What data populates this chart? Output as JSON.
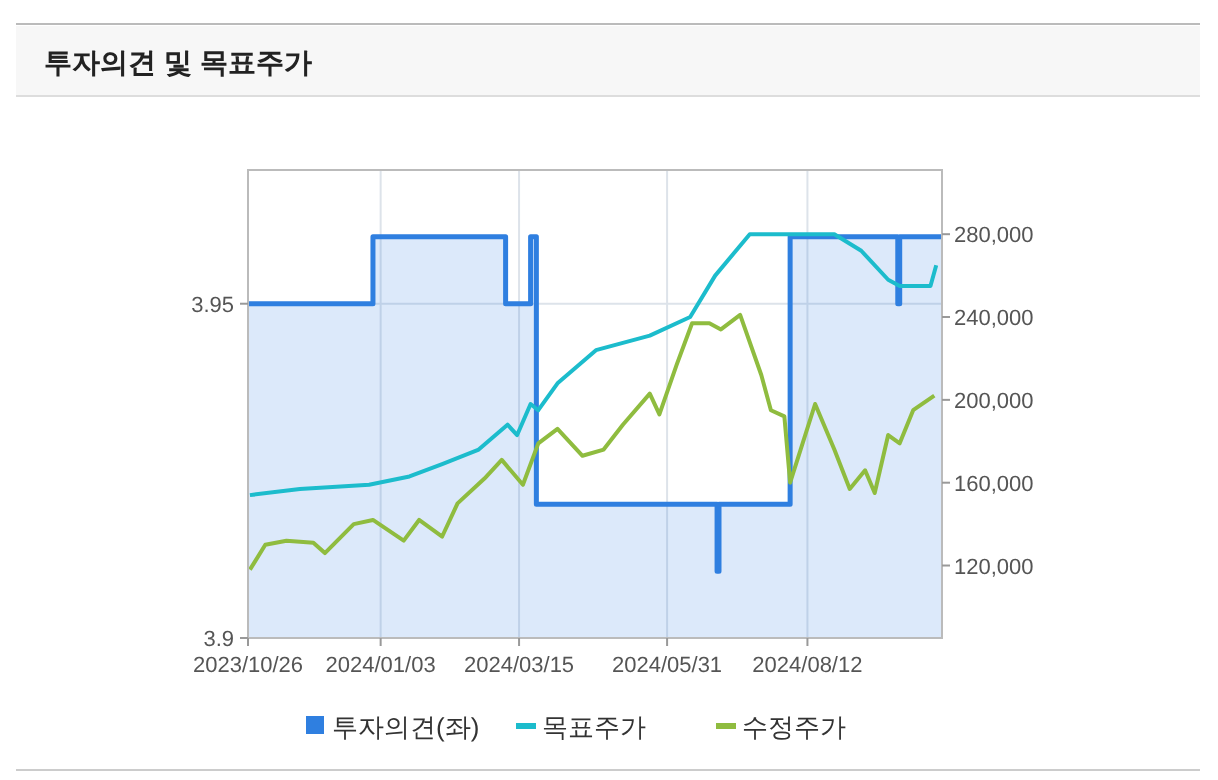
{
  "chart_data": {
    "type": "line",
    "title": "투자의견 및 목표주가",
    "xlim": [
      "2023-10-26",
      "2024-10-21"
    ],
    "xticks": [
      {
        "value": "2023-10-26",
        "label": "2023/10/26"
      },
      {
        "value": "2024-01-03",
        "label": "2024/01/03"
      },
      {
        "value": "2024-03-15",
        "label": "2024/03/15"
      },
      {
        "value": "2024-05-31",
        "label": "2024/05/31"
      },
      {
        "value": "2024-08-12",
        "label": "2024/08/12"
      }
    ],
    "ylim": [
      3.9,
      3.97
    ],
    "yticks": [
      3.9,
      3.95
    ],
    "y2lim": [
      85000,
      311000
    ],
    "y2ticks": [
      {
        "value": 120000,
        "label": "120,000"
      },
      {
        "value": 160000,
        "label": "160,000"
      },
      {
        "value": 200000,
        "label": "200,000"
      },
      {
        "value": 240000,
        "label": "240,000"
      },
      {
        "value": 280000,
        "label": "280,000"
      }
    ],
    "grid": true,
    "legend": "bottom",
    "series": [
      {
        "name": "투자의견(좌)",
        "type": "area",
        "color": "#2f7fe0",
        "x": [
          "2023-10-26",
          "2023-12-30",
          "2023-12-30",
          "2024-03-08",
          "2024-03-08",
          "2024-03-21",
          "2024-03-21",
          "2024-03-24",
          "2024-03-24",
          "2024-06-26",
          "2024-06-26",
          "2024-06-27",
          "2024-06-27",
          "2024-08-03",
          "2024-08-03",
          "2024-09-28",
          "2024-09-28",
          "2024-09-29",
          "2024-09-29",
          "2024-10-21"
        ],
        "values": [
          3.95,
          3.95,
          3.96,
          3.96,
          3.95,
          3.95,
          3.96,
          3.96,
          3.92,
          3.92,
          3.91,
          3.91,
          3.92,
          3.92,
          3.96,
          3.96,
          3.95,
          3.95,
          3.96,
          3.96
        ]
      },
      {
        "name": "목표주가",
        "type": "line",
        "axis": "y2",
        "color": "#1cbccc",
        "x": [
          "2023-10-27",
          "2023-11-22",
          "2023-12-28",
          "2024-01-18",
          "2024-02-04",
          "2024-02-23",
          "2024-03-09",
          "2024-03-14",
          "2024-03-21",
          "2024-03-25",
          "2024-04-04",
          "2024-04-24",
          "2024-05-22",
          "2024-06-12",
          "2024-06-25",
          "2024-07-13",
          "2024-08-26",
          "2024-09-09",
          "2024-09-23",
          "2024-09-29",
          "2024-10-15",
          "2024-10-18"
        ],
        "values": [
          154000,
          157000,
          159000,
          163000,
          169000,
          176000,
          188000,
          183000,
          198000,
          195000,
          208000,
          224000,
          231000,
          240000,
          260000,
          280000,
          280000,
          272000,
          258000,
          255000,
          255000,
          265000
        ]
      },
      {
        "name": "수정주가",
        "type": "line",
        "axis": "y2",
        "color": "#8fbc3f",
        "x": [
          "2023-10-27",
          "2023-11-04",
          "2023-11-15",
          "2023-11-29",
          "2023-12-05",
          "2023-12-20",
          "2023-12-30",
          "2024-01-15",
          "2024-01-23",
          "2024-02-04",
          "2024-02-12",
          "2024-02-26",
          "2024-03-06",
          "2024-03-17",
          "2024-03-25",
          "2024-04-04",
          "2024-04-17",
          "2024-04-28",
          "2024-05-08",
          "2024-05-22",
          "2024-05-27",
          "2024-06-05",
          "2024-06-13",
          "2024-06-22",
          "2024-06-28",
          "2024-07-08",
          "2024-07-19",
          "2024-07-24",
          "2024-07-31",
          "2024-08-03",
          "2024-08-16",
          "2024-08-26",
          "2024-09-03",
          "2024-09-11",
          "2024-09-16",
          "2024-09-23",
          "2024-09-29",
          "2024-10-06",
          "2024-10-17"
        ],
        "values": [
          118000,
          130000,
          132000,
          131000,
          126000,
          140000,
          142000,
          132000,
          142000,
          134000,
          150000,
          162000,
          171000,
          159000,
          179000,
          186000,
          173000,
          176000,
          188000,
          203000,
          193000,
          217000,
          237000,
          237000,
          234000,
          241000,
          212000,
          195000,
          192000,
          160000,
          198000,
          176000,
          157000,
          166000,
          155000,
          183000,
          179000,
          195000,
          202000
        ]
      }
    ]
  }
}
